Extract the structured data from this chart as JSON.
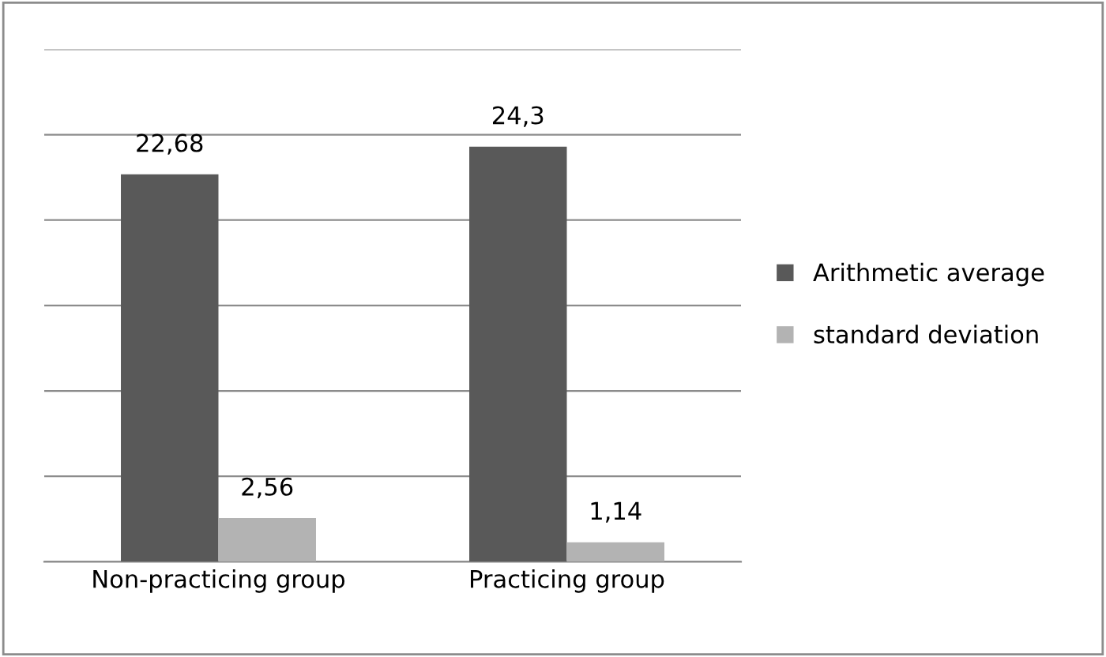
{
  "chart_data": {
    "type": "bar",
    "categories": [
      "Non-practicing group",
      "Practicing group"
    ],
    "series": [
      {
        "name": "Arithmetic average",
        "color": "#595959",
        "values": [
          22.68,
          24.3
        ],
        "value_labels": [
          "22,68",
          "24,3"
        ]
      },
      {
        "name": "standard deviation",
        "color": "#b3b3b3",
        "values": [
          2.56,
          1.14
        ],
        "value_labels": [
          "2,56",
          "1,14"
        ]
      }
    ],
    "ylim": [
      0,
      30
    ],
    "yticks": [
      {
        "value": 0,
        "label": null
      },
      {
        "value": 5,
        "label": null
      },
      {
        "value": 10,
        "label": null
      },
      {
        "value": 15,
        "label": null
      },
      {
        "value": 20,
        "label": null
      },
      {
        "value": 25,
        "label": null
      },
      {
        "value": 30,
        "label": null
      }
    ],
    "tick_labels": "x",
    "grid": "y",
    "legend": "right"
  }
}
